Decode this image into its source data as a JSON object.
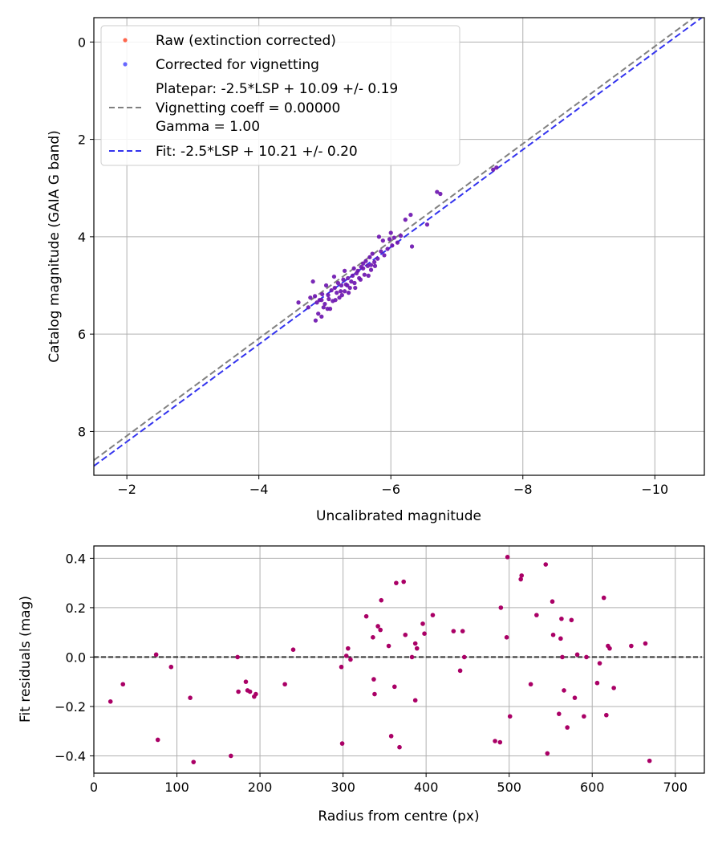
{
  "chart_data": [
    {
      "type": "scatter",
      "xlabel": "Uncalibrated magnitude",
      "ylabel": "Catalog magnitude (GAIA G band)",
      "xlim": [
        -1.5,
        -10.75
      ],
      "ylim": [
        8.9,
        -0.5
      ],
      "xticks": [
        -2,
        -4,
        -6,
        -8,
        -10
      ],
      "xtick_labels": [
        "−2",
        "−4",
        "−6",
        "−8",
        "−10"
      ],
      "yticks": [
        0,
        2,
        4,
        6,
        8
      ],
      "ytick_labels": [
        "0",
        "2",
        "4",
        "6",
        "8"
      ],
      "grid": true,
      "legend_position": "top-left",
      "legend": {
        "raw": "Raw (extinction corrected)",
        "corrected": "Corrected for vignetting",
        "platepar_lines": [
          "Platepar: -2.5*LSP + 10.09 +/- 0.19",
          "Vignetting coeff = 0.00000",
          "Gamma = 1.00"
        ],
        "fit": "Fit: -2.5*LSP + 10.21 +/- 0.20"
      },
      "lines": [
        {
          "name": "Platepar",
          "slope": 1.0,
          "intercept": 10.09,
          "color": "#808080"
        },
        {
          "name": "Fit",
          "slope": 1.0,
          "intercept": 10.21,
          "color": "#3333ee"
        }
      ],
      "series": [
        {
          "name": "Corrected for vignetting",
          "color": "#5511cc",
          "points": [
            [
              -4.85,
              5.22
            ],
            [
              -4.88,
              5.35
            ],
            [
              -4.95,
              5.3
            ],
            [
              -5.0,
              5.38
            ],
            [
              -5.05,
              5.2
            ],
            [
              -5.1,
              5.1
            ],
            [
              -5.12,
              5.32
            ],
            [
              -5.15,
              5.05
            ],
            [
              -5.18,
              5.15
            ],
            [
              -5.2,
              4.95
            ],
            [
              -5.22,
              5.25
            ],
            [
              -5.25,
              5.0
            ],
            [
              -5.28,
              4.88
            ],
            [
              -5.3,
              5.12
            ],
            [
              -5.32,
              4.98
            ],
            [
              -5.35,
              4.85
            ],
            [
              -5.38,
              5.05
            ],
            [
              -5.4,
              4.92
            ],
            [
              -5.42,
              4.8
            ],
            [
              -5.45,
              4.95
            ],
            [
              -5.48,
              4.75
            ],
            [
              -5.5,
              4.7
            ],
            [
              -5.52,
              4.85
            ],
            [
              -5.55,
              4.62
            ],
            [
              -5.58,
              4.55
            ],
            [
              -5.6,
              4.78
            ],
            [
              -5.62,
              4.5
            ],
            [
              -5.65,
              4.6
            ],
            [
              -5.68,
              4.42
            ],
            [
              -5.7,
              4.58
            ],
            [
              -5.72,
              4.35
            ],
            [
              -5.75,
              4.52
            ],
            [
              -4.6,
              5.35
            ],
            [
              -4.75,
              5.45
            ],
            [
              -4.82,
              4.92
            ],
            [
              -4.9,
              5.58
            ],
            [
              -4.98,
              5.45
            ],
            [
              -5.02,
              5.0
            ],
            [
              -5.08,
              5.48
            ],
            [
              -5.14,
              4.82
            ],
            [
              -5.3,
              4.7
            ],
            [
              -5.36,
              5.15
            ],
            [
              -5.44,
              4.65
            ],
            [
              -5.58,
              4.65
            ],
            [
              -5.66,
              4.8
            ],
            [
              -5.8,
              4.45
            ],
            [
              -5.85,
              4.3
            ],
            [
              -5.9,
              4.38
            ],
            [
              -5.95,
              4.25
            ],
            [
              -5.98,
              4.05
            ],
            [
              -6.02,
              4.18
            ],
            [
              -6.05,
              4.02
            ],
            [
              -6.1,
              4.12
            ],
            [
              -5.82,
              4.0
            ],
            [
              -5.88,
              4.08
            ],
            [
              -6.0,
              3.92
            ],
            [
              -6.15,
              3.98
            ],
            [
              -6.22,
              3.65
            ],
            [
              -6.3,
              3.55
            ],
            [
              -6.32,
              4.2
            ],
            [
              -6.55,
              3.75
            ],
            [
              -6.7,
              3.08
            ],
            [
              -6.75,
              3.12
            ],
            [
              -7.55,
              2.62
            ],
            [
              -7.6,
              2.58
            ],
            [
              -4.78,
              5.25
            ],
            [
              -4.92,
              5.3
            ],
            [
              -4.96,
              5.18
            ],
            [
              -5.06,
              5.28
            ],
            [
              -5.16,
              5.3
            ],
            [
              -5.24,
              5.12
            ],
            [
              -5.26,
              5.2
            ],
            [
              -5.34,
              5.0
            ],
            [
              -5.46,
              5.05
            ],
            [
              -5.54,
              4.88
            ],
            [
              -4.86,
              5.72
            ],
            [
              -4.95,
              5.64
            ],
            [
              -5.04,
              5.48
            ],
            [
              -5.7,
              4.68
            ],
            [
              -5.76,
              4.6
            ]
          ]
        }
      ]
    },
    {
      "type": "scatter",
      "xlabel": "Radius from centre (px)",
      "ylabel": "Fit residuals (mag)",
      "xlim": [
        0,
        735
      ],
      "ylim": [
        -0.47,
        0.45
      ],
      "xticks": [
        0,
        100,
        200,
        300,
        400,
        500,
        600,
        700
      ],
      "xtick_labels": [
        "0",
        "100",
        "200",
        "300",
        "400",
        "500",
        "600",
        "700"
      ],
      "yticks": [
        0.4,
        0.2,
        0.0,
        -0.2,
        -0.4
      ],
      "ytick_labels": [
        "0.4",
        "0.2",
        "0.0",
        "−0.2",
        "−0.4"
      ],
      "grid": true,
      "hline": 0.0,
      "series": [
        {
          "name": "Residuals",
          "color": "#aa0066",
          "points": [
            [
              20,
              -0.18
            ],
            [
              35,
              -0.11
            ],
            [
              75,
              0.01
            ],
            [
              77,
              -0.335
            ],
            [
              93,
              -0.04
            ],
            [
              116,
              -0.165
            ],
            [
              120,
              -0.425
            ],
            [
              165,
              -0.4
            ],
            [
              173,
              0.0
            ],
            [
              174,
              -0.14
            ],
            [
              183,
              -0.1
            ],
            [
              185,
              -0.135
            ],
            [
              188,
              -0.14
            ],
            [
              193,
              -0.16
            ],
            [
              195,
              -0.15
            ],
            [
              230,
              -0.11
            ],
            [
              240,
              0.03
            ],
            [
              298,
              -0.04
            ],
            [
              299,
              -0.35
            ],
            [
              304,
              0.005
            ],
            [
              306,
              0.035
            ],
            [
              309,
              -0.01
            ],
            [
              328,
              0.165
            ],
            [
              336,
              0.08
            ],
            [
              337,
              -0.09
            ],
            [
              338,
              -0.15
            ],
            [
              342,
              0.125
            ],
            [
              345,
              0.11
            ],
            [
              346,
              0.23
            ],
            [
              355,
              0.045
            ],
            [
              358,
              -0.32
            ],
            [
              362,
              -0.12
            ],
            [
              364,
              0.3
            ],
            [
              368,
              -0.365
            ],
            [
              373,
              0.305
            ],
            [
              375,
              0.09
            ],
            [
              383,
              0.0
            ],
            [
              387,
              -0.175
            ],
            [
              387,
              0.055
            ],
            [
              389,
              0.035
            ],
            [
              396,
              0.135
            ],
            [
              398,
              0.095
            ],
            [
              408,
              0.17
            ],
            [
              433,
              0.105
            ],
            [
              441,
              -0.055
            ],
            [
              444,
              0.105
            ],
            [
              446,
              0.0
            ],
            [
              483,
              -0.34
            ],
            [
              489,
              -0.345
            ],
            [
              490,
              0.2
            ],
            [
              497,
              0.08
            ],
            [
              498,
              0.405
            ],
            [
              501,
              -0.24
            ],
            [
              514,
              0.315
            ],
            [
              515,
              0.33
            ],
            [
              526,
              -0.11
            ],
            [
              533,
              0.17
            ],
            [
              544,
              0.375
            ],
            [
              546,
              -0.39
            ],
            [
              552,
              0.225
            ],
            [
              553,
              0.09
            ],
            [
              560,
              -0.23
            ],
            [
              562,
              0.075
            ],
            [
              563,
              0.155
            ],
            [
              564,
              0.0
            ],
            [
              566,
              -0.135
            ],
            [
              570,
              -0.285
            ],
            [
              575,
              0.15
            ],
            [
              579,
              -0.165
            ],
            [
              582,
              0.01
            ],
            [
              590,
              -0.24
            ],
            [
              593,
              0.0
            ],
            [
              606,
              -0.105
            ],
            [
              609,
              -0.025
            ],
            [
              614,
              0.24
            ],
            [
              617,
              -0.235
            ],
            [
              619,
              0.045
            ],
            [
              621,
              0.035
            ],
            [
              626,
              -0.125
            ],
            [
              647,
              0.045
            ],
            [
              664,
              0.055
            ],
            [
              669,
              -0.42
            ]
          ]
        }
      ]
    }
  ]
}
